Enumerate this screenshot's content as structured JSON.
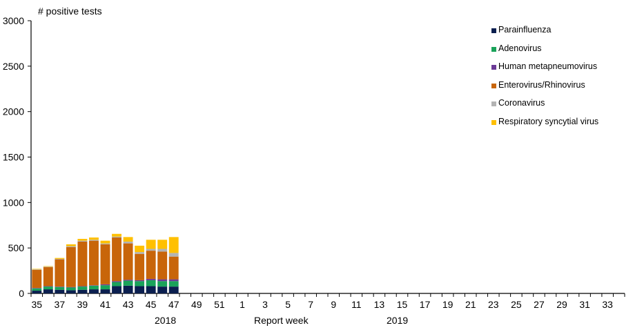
{
  "chart_data": {
    "type": "bar",
    "stacked": true,
    "title": "",
    "ylabel": "# positive tests",
    "xlabel": "Report week",
    "ylim": [
      0,
      3000
    ],
    "yticks": [
      0,
      500,
      1000,
      1500,
      2000,
      2500,
      3000
    ],
    "grid": false,
    "legend_position": "top-right",
    "year_labels": [
      {
        "label": "2018",
        "under_week": "47"
      },
      {
        "label": "2019",
        "under_week": "14"
      }
    ],
    "categories": [
      "35",
      "36",
      "37",
      "38",
      "39",
      "40",
      "41",
      "42",
      "43",
      "44",
      "45",
      "46",
      "47",
      "48",
      "49",
      "50",
      "51",
      "52",
      "1",
      "2",
      "3",
      "4",
      "5",
      "6",
      "7",
      "8",
      "9",
      "10",
      "11",
      "12",
      "13",
      "14",
      "15",
      "16",
      "17",
      "18",
      "19",
      "20",
      "21",
      "22",
      "23",
      "24",
      "25",
      "26",
      "27",
      "28",
      "29",
      "30",
      "31",
      "32",
      "33",
      "34"
    ],
    "tick_labels": [
      "35",
      "37",
      "39",
      "41",
      "43",
      "45",
      "47",
      "49",
      "51",
      "1",
      "3",
      "5",
      "7",
      "9",
      "11",
      "13",
      "15",
      "17",
      "19",
      "21",
      "23",
      "25",
      "27",
      "29",
      "31",
      "33"
    ],
    "series": [
      {
        "name": "Parainfluenza",
        "color": "#0b1f4f",
        "values": [
          30,
          45,
          40,
          35,
          40,
          45,
          45,
          80,
          85,
          80,
          80,
          75,
          75
        ]
      },
      {
        "name": "Adenovirus",
        "color": "#1aa35a",
        "values": [
          25,
          30,
          30,
          30,
          35,
          40,
          45,
          45,
          55,
          55,
          65,
          60,
          60
        ]
      },
      {
        "name": "Human metapneumovirus",
        "color": "#6b3a96",
        "values": [
          5,
          5,
          5,
          5,
          5,
          5,
          10,
          10,
          10,
          10,
          15,
          20,
          20
        ]
      },
      {
        "name": "Enterovirus/Rhinovirus",
        "color": "#c8650a",
        "values": [
          200,
          210,
          300,
          440,
          490,
          490,
          440,
          480,
          400,
          290,
          310,
          305,
          250
        ]
      },
      {
        "name": "Coronavirus",
        "color": "#b3b3b3",
        "values": [
          5,
          5,
          5,
          10,
          10,
          10,
          10,
          10,
          20,
          20,
          20,
          30,
          40
        ]
      },
      {
        "name": "Respiratory syncytial virus",
        "color": "#ffc000",
        "values": [
          5,
          5,
          10,
          20,
          20,
          25,
          30,
          30,
          50,
          70,
          100,
          100,
          175
        ]
      }
    ]
  },
  "legend": {
    "items": [
      {
        "label": "Parainfluenza",
        "color": "#0b1f4f"
      },
      {
        "label": "Adenovirus",
        "color": "#1aa35a"
      },
      {
        "label": "Human metapneumovirus",
        "color": "#6b3a96"
      },
      {
        "label": "Enterovirus/Rhinovirus",
        "color": "#c8650a"
      },
      {
        "label": "Coronavirus",
        "color": "#b3b3b3"
      },
      {
        "label": "Respiratory syncytial virus",
        "color": "#ffc000"
      }
    ]
  },
  "axis": {
    "y_title": "# positive tests",
    "x_title": "Report week",
    "year_2018": "2018",
    "year_2019": "2019"
  }
}
